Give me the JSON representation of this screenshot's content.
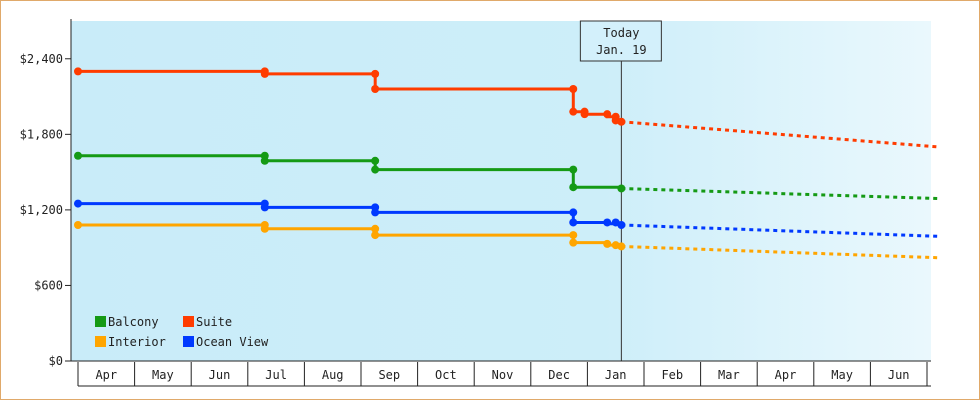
{
  "chart_data": {
    "type": "line",
    "x_axis": {
      "tick_labels": [
        "Apr",
        "May",
        "Jun",
        "Jul",
        "Aug",
        "Sep",
        "Oct",
        "Nov",
        "Dec",
        "Jan",
        "Feb",
        "Mar",
        "Apr",
        "May",
        "Jun"
      ]
    },
    "y_axis": {
      "ylim": [
        0,
        2700
      ],
      "ticks": [
        0,
        600,
        1200,
        1800,
        2400
      ],
      "tick_labels": [
        "$0",
        "$600",
        "$1,200",
        "$1,800",
        "$2,400"
      ]
    },
    "today_marker": {
      "line1": "Today",
      "line2": "Jan. 19",
      "x": 9.6
    },
    "legend": {
      "placement": "bottom-left"
    },
    "series": [
      {
        "name": "Suite",
        "color": "#ff3c00",
        "history": [
          [
            0,
            2300
          ],
          [
            3.3,
            2300
          ],
          [
            3.3,
            2280
          ],
          [
            5.25,
            2280
          ],
          [
            5.25,
            2160
          ],
          [
            8.75,
            2160
          ],
          [
            8.75,
            1980
          ],
          [
            8.95,
            1980
          ],
          [
            8.95,
            1960
          ],
          [
            9.35,
            1960
          ],
          [
            9.35,
            1940
          ],
          [
            9.5,
            1940
          ],
          [
            9.5,
            1910
          ],
          [
            9.6,
            1910
          ]
        ],
        "markers": [
          [
            0,
            2300
          ],
          [
            3.3,
            2300
          ],
          [
            3.3,
            2280
          ],
          [
            5.25,
            2280
          ],
          [
            5.25,
            2160
          ],
          [
            8.75,
            2160
          ],
          [
            8.75,
            1980
          ],
          [
            8.95,
            1980
          ],
          [
            8.95,
            1960
          ],
          [
            9.35,
            1960
          ],
          [
            9.5,
            1940
          ],
          [
            9.5,
            1910
          ],
          [
            9.6,
            1900
          ]
        ],
        "forecast": [
          [
            9.6,
            1900
          ],
          [
            15.2,
            1700
          ]
        ]
      },
      {
        "name": "Balcony",
        "color": "#159a15",
        "history": [
          [
            0,
            1630
          ],
          [
            3.3,
            1630
          ],
          [
            3.3,
            1590
          ],
          [
            5.25,
            1590
          ],
          [
            5.25,
            1520
          ],
          [
            8.75,
            1520
          ],
          [
            8.75,
            1380
          ],
          [
            9.6,
            1380
          ]
        ],
        "markers": [
          [
            0,
            1630
          ],
          [
            3.3,
            1630
          ],
          [
            3.3,
            1590
          ],
          [
            5.25,
            1590
          ],
          [
            5.25,
            1520
          ],
          [
            8.75,
            1520
          ],
          [
            8.75,
            1380
          ],
          [
            9.6,
            1370
          ]
        ],
        "forecast": [
          [
            9.6,
            1370
          ],
          [
            15.2,
            1290
          ]
        ]
      },
      {
        "name": "Ocean View",
        "color": "#0039ff",
        "history": [
          [
            0,
            1250
          ],
          [
            3.3,
            1250
          ],
          [
            3.3,
            1220
          ],
          [
            5.25,
            1220
          ],
          [
            5.25,
            1180
          ],
          [
            8.75,
            1180
          ],
          [
            8.75,
            1100
          ],
          [
            9.35,
            1100
          ],
          [
            9.35,
            1090
          ],
          [
            9.6,
            1090
          ]
        ],
        "markers": [
          [
            0,
            1250
          ],
          [
            3.3,
            1250
          ],
          [
            3.3,
            1220
          ],
          [
            5.25,
            1220
          ],
          [
            5.25,
            1180
          ],
          [
            8.75,
            1180
          ],
          [
            8.75,
            1100
          ],
          [
            9.35,
            1100
          ],
          [
            9.5,
            1100
          ],
          [
            9.6,
            1080
          ]
        ],
        "forecast": [
          [
            9.6,
            1080
          ],
          [
            15.2,
            990
          ]
        ]
      },
      {
        "name": "Interior",
        "color": "#ffa500",
        "history": [
          [
            0,
            1080
          ],
          [
            3.3,
            1080
          ],
          [
            3.3,
            1050
          ],
          [
            5.25,
            1050
          ],
          [
            5.25,
            1000
          ],
          [
            8.75,
            1000
          ],
          [
            8.75,
            940
          ],
          [
            9.35,
            940
          ],
          [
            9.35,
            920
          ],
          [
            9.6,
            920
          ]
        ],
        "markers": [
          [
            0,
            1080
          ],
          [
            3.3,
            1080
          ],
          [
            3.3,
            1050
          ],
          [
            5.25,
            1050
          ],
          [
            5.25,
            1000
          ],
          [
            8.75,
            1000
          ],
          [
            8.75,
            940
          ],
          [
            9.35,
            930
          ],
          [
            9.5,
            920
          ],
          [
            9.6,
            910
          ]
        ],
        "forecast": [
          [
            9.6,
            910
          ],
          [
            15.2,
            820
          ]
        ]
      }
    ],
    "legend_order": [
      "Balcony",
      "Suite",
      "Interior",
      "Ocean View"
    ]
  }
}
